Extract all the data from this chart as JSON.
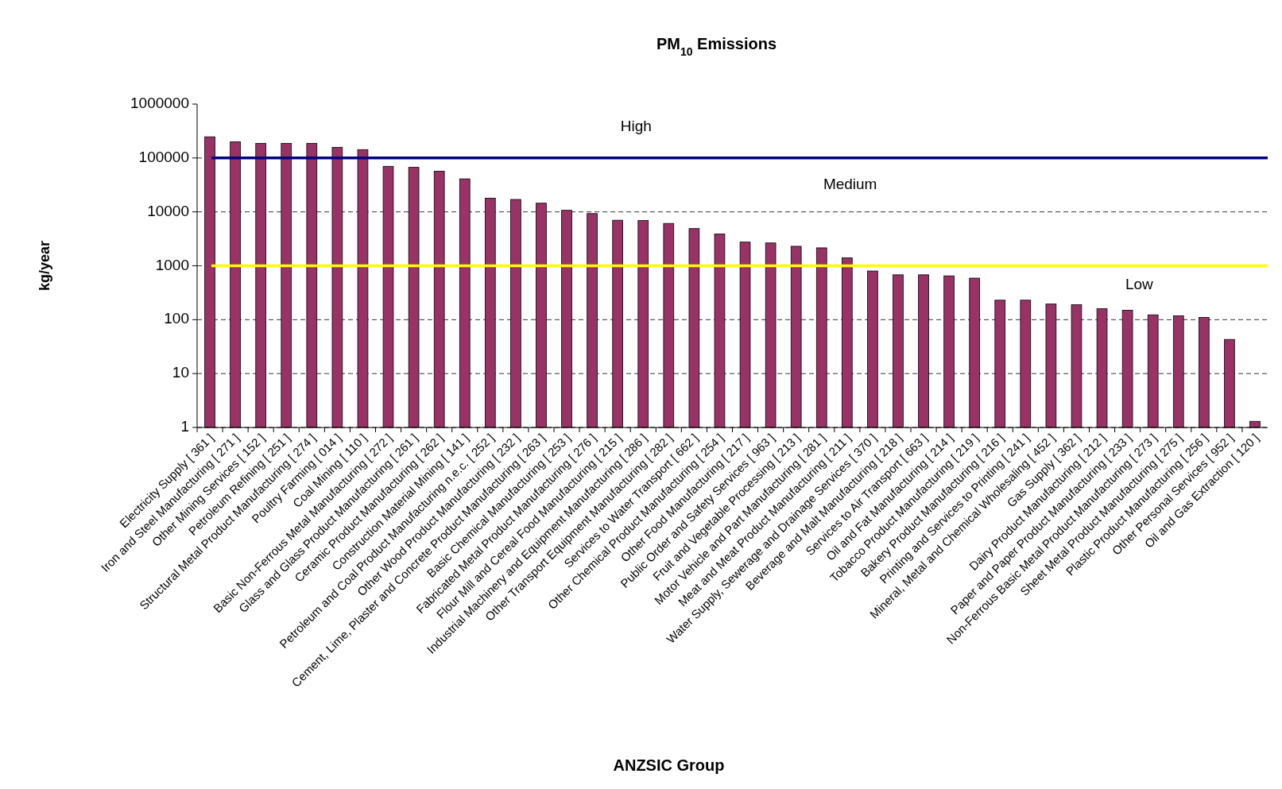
{
  "chart_data": {
    "type": "bar",
    "title": "PM$_{10}$ Emissions",
    "xlabel": "ANZSIC Group",
    "ylabel": "kg/year",
    "log": true,
    "grid": "y",
    "ylim": [
      1,
      1000000
    ],
    "yticks": [
      1,
      10,
      100,
      1000,
      10000,
      100000,
      1000000
    ],
    "categories": [
      "Electricity Supply [ 361 ]",
      "Iron and Steel Manufacturing [ 271 ]",
      "Other Mining Services [ 152 ]",
      "Petroleum Refining [ 251 ]",
      "Structural Metal Product Manufacturing [ 274 ]",
      "Poultry Farming [ 014 ]",
      "Coal Mining [ 110 ]",
      "Basic Non-Ferrous Metal Manufacturing [ 272 ]",
      "Glass and Glass Product Manufacturing [ 261 ]",
      "Ceramic Product Manufacturing [ 262 ]",
      "Construction Material Mining [ 141 ]",
      "Petroleum and Coal Product Manufacturing n.e.c. [ 252 ]",
      "Other Wood Product Manufacturing [ 232 ]",
      "Cement, Lime, Plaster and Concrete Product Manufacturing [ 263 ]",
      "Basic Chemical Manufacturing [ 253 ]",
      "Fabricated Metal Product Manufacturing [ 276 ]",
      "Flour Mill and Cereal Food Manufacturing [ 215 ]",
      "Industrial Machinery and Equipment Manufacturing [ 286 ]",
      "Other Transport Equipment Manufacturing [ 282 ]",
      "Services to Water Transport [ 662 ]",
      "Other Chemical Product Manufacturing [ 254 ]",
      "Other Food Manufacturing [ 217 ]",
      "Public Order and Safety Services [ 963 ]",
      "Fruit and Vegetable Processing [ 213 ]",
      "Motor Vehicle and Part Manufacturing [ 281 ]",
      "Meat and Meat Product Manufacturing [ 211 ]",
      "Water Supply, Sewerage and Drainage Services [ 370 ]",
      "Beverage and Malt Manufacturing [ 218 ]",
      "Services to Air Transport [ 663 ]",
      "Oil and Fat Manufacturing [ 214 ]",
      "Tobacco Product Manufacturing [ 219 ]",
      "Bakery Product Manufacturing [ 216 ]",
      "Printing and Services to Printing [ 241 ]",
      "Mineral, Metal and Chemical Wholesaling [ 452 ]",
      "Gas Supply [ 362 ]",
      "Dairy Product Manufacturing [ 212 ]",
      "Paper and Paper Product Manufacturing [ 233 ]",
      "Non-Ferrous Basic Metal Product Manufacturing [ 273 ]",
      "Sheet Metal Product Manufacturing [ 275 ]",
      "Plastic Product Manufacturing [ 256 ]",
      "Other Personal Services [ 952 ]",
      "Oil and Gas Extraction [ 120 ]"
    ],
    "series": [
      {
        "color": "#993366",
        "values": [
          247000,
          200000,
          187000,
          187000,
          187000,
          157000,
          143000,
          70000,
          67000,
          57000,
          41000,
          18000,
          17000,
          14500,
          10700,
          9300,
          7000,
          6900,
          6100,
          4900,
          3900,
          2750,
          2650,
          2300,
          2150,
          1400,
          800,
          680,
          680,
          650,
          590,
          230,
          230,
          195,
          190,
          160,
          150,
          123,
          118,
          110,
          43,
          1.3
        ]
      }
    ],
    "ref_lines": [
      {
        "axis": "y",
        "value": 100000,
        "color": "#000080",
        "line_style": "solid"
      },
      {
        "axis": "y",
        "value": 1000,
        "color": "#ffff00",
        "line_style": "solid"
      }
    ],
    "annotations": [
      "High",
      "Medium",
      "Low"
    ]
  }
}
